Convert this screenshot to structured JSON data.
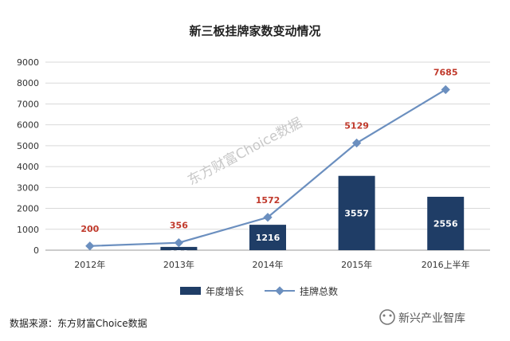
{
  "chart_data": {
    "type": "bar+line",
    "title": "新三板挂牌家数变动情况",
    "categories": [
      "2012年",
      "2013年",
      "2014年",
      "2015年",
      "2016上半年"
    ],
    "ylim": [
      0,
      9000
    ],
    "yticks": [
      0,
      1000,
      2000,
      3000,
      4000,
      5000,
      6000,
      7000,
      8000,
      9000
    ],
    "grid": true,
    "legend_position": "bottom",
    "series": [
      {
        "name": "年度增长",
        "type": "bar",
        "color": "#1f3d66",
        "values": [
          null,
          156,
          1216,
          3557,
          2556
        ],
        "labels": [
          "",
          "156",
          "1216",
          "3557",
          "2556"
        ]
      },
      {
        "name": "挂牌总数",
        "type": "line",
        "color": "#6b8fbf",
        "values": [
          200,
          356,
          1572,
          5129,
          7685
        ],
        "labels": [
          "200",
          "356",
          "1572",
          "5129",
          "7685"
        ]
      }
    ]
  },
  "watermark": "东方财富Choice数据",
  "source": "数据来源：东方财富Choice数据",
  "brand": "新兴产业智库",
  "colors": {
    "bar": "#1f3d66",
    "line": "#6b8fbf",
    "label": "#c0392b",
    "grid": "#d9d9d9"
  }
}
